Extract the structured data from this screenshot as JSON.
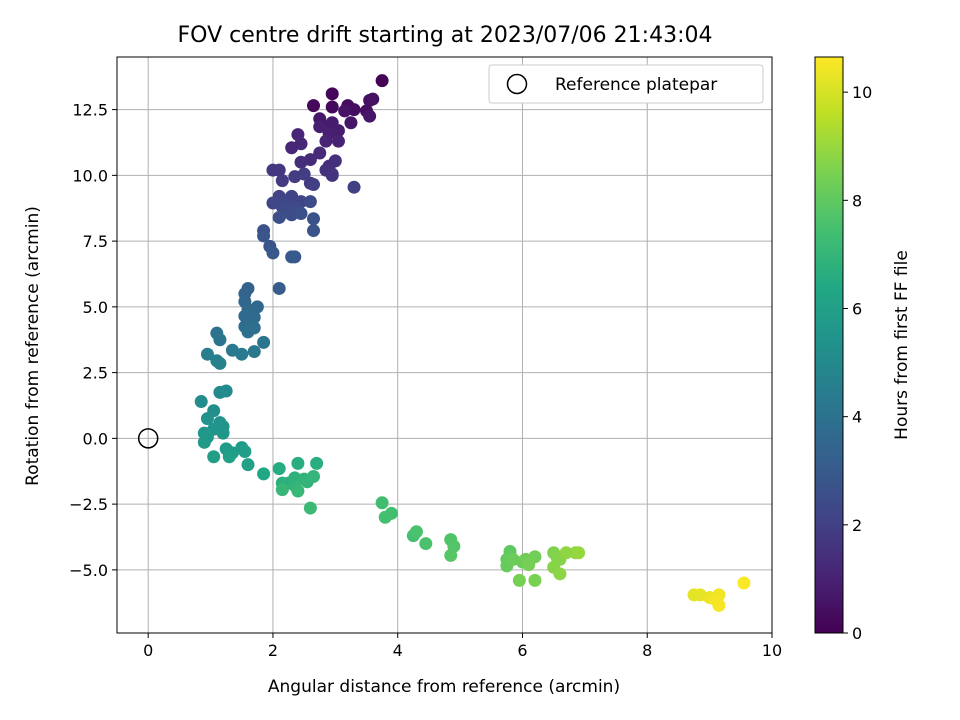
{
  "chart_data": {
    "type": "scatter",
    "title": "FOV centre drift starting at 2023/07/06 21:43:04",
    "xlabel": "Angular distance from reference (arcmin)",
    "ylabel": "Rotation from reference (arcmin)",
    "xlim": [
      -0.5,
      10
    ],
    "ylim": [
      -7.4,
      14.5
    ],
    "xticks": [
      0,
      2,
      4,
      6,
      8,
      10
    ],
    "xtick_labels": [
      "0",
      "2",
      "4",
      "6",
      "8",
      "10"
    ],
    "yticks": [
      -5.0,
      -2.5,
      0.0,
      2.5,
      5.0,
      7.5,
      10.0,
      12.5
    ],
    "ytick_labels": [
      "−5.0",
      "−2.5",
      "0.0",
      "2.5",
      "5.0",
      "7.5",
      "10.0",
      "12.5"
    ],
    "grid": true,
    "legend": {
      "position": "top-right",
      "entries": [
        "Reference platepar"
      ]
    },
    "reference_point": {
      "x": 0,
      "y": 0
    },
    "colorbar": {
      "label": "Hours from first FF file",
      "range": [
        0,
        10.65
      ],
      "ticks": [
        0,
        2,
        4,
        6,
        8,
        10
      ],
      "tick_labels": [
        "0",
        "2",
        "4",
        "6",
        "8",
        "10"
      ],
      "colormap": "viridis"
    },
    "series": [
      {
        "values": [
          [
            3.75,
            13.6,
            0.05
          ],
          [
            2.95,
            13.1,
            0.15
          ],
          [
            2.65,
            12.65,
            0.2
          ],
          [
            2.95,
            12.6,
            0.25
          ],
          [
            3.2,
            12.65,
            0.3
          ],
          [
            3.3,
            12.5,
            0.35
          ],
          [
            3.5,
            12.45,
            0.4
          ],
          [
            3.55,
            12.85,
            0.45
          ],
          [
            3.6,
            12.9,
            0.5
          ],
          [
            3.15,
            12.45,
            0.55
          ],
          [
            3.25,
            12.0,
            0.6
          ],
          [
            3.55,
            12.25,
            0.65
          ],
          [
            2.75,
            12.15,
            0.7
          ],
          [
            2.85,
            11.85,
            0.75
          ],
          [
            2.95,
            12.0,
            0.8
          ],
          [
            3.05,
            11.7,
            0.85
          ],
          [
            2.75,
            11.85,
            0.9
          ],
          [
            2.9,
            11.6,
            0.95
          ],
          [
            3.05,
            11.3,
            1.0
          ],
          [
            2.85,
            11.3,
            1.05
          ],
          [
            2.4,
            11.55,
            1.1
          ],
          [
            2.45,
            11.2,
            1.15
          ],
          [
            2.3,
            11.05,
            1.2
          ],
          [
            2.75,
            10.85,
            1.25
          ],
          [
            2.6,
            10.6,
            1.3
          ],
          [
            2.45,
            10.5,
            1.35
          ],
          [
            2.9,
            10.35,
            1.4
          ],
          [
            3.0,
            10.55,
            1.45
          ],
          [
            2.85,
            10.2,
            1.5
          ],
          [
            2.95,
            10.05,
            1.55
          ],
          [
            2.95,
            10.0,
            1.6
          ],
          [
            2.0,
            10.2,
            1.65
          ],
          [
            2.1,
            10.2,
            1.7
          ],
          [
            2.6,
            9.7,
            1.75
          ],
          [
            2.15,
            9.8,
            1.8
          ],
          [
            2.35,
            9.95,
            1.85
          ],
          [
            2.5,
            10.05,
            1.9
          ],
          [
            2.65,
            9.65,
            1.95
          ],
          [
            3.3,
            9.55,
            2.0
          ],
          [
            2.1,
            9.2,
            2.05
          ],
          [
            2.3,
            9.2,
            2.1
          ],
          [
            2.45,
            9.0,
            2.15
          ],
          [
            2.0,
            8.95,
            2.2
          ],
          [
            2.2,
            9.0,
            2.25
          ],
          [
            2.15,
            8.8,
            2.3
          ],
          [
            2.35,
            8.75,
            2.35
          ],
          [
            2.6,
            9.0,
            2.4
          ],
          [
            2.2,
            8.6,
            2.45
          ],
          [
            2.3,
            8.5,
            2.5
          ],
          [
            2.1,
            8.4,
            2.55
          ],
          [
            2.45,
            8.55,
            2.6
          ],
          [
            2.65,
            8.35,
            2.65
          ],
          [
            1.85,
            7.9,
            2.7
          ],
          [
            2.65,
            7.9,
            2.75
          ],
          [
            1.85,
            7.7,
            2.8
          ],
          [
            1.95,
            7.3,
            2.85
          ],
          [
            2.0,
            7.05,
            2.9
          ],
          [
            2.3,
            6.9,
            2.95
          ],
          [
            2.35,
            6.9,
            3.0
          ],
          [
            2.1,
            5.7,
            3.1
          ],
          [
            1.6,
            5.7,
            3.3
          ],
          [
            1.55,
            5.5,
            3.4
          ],
          [
            1.55,
            5.2,
            3.5
          ],
          [
            1.75,
            5.0,
            3.55
          ],
          [
            1.6,
            4.9,
            3.6
          ],
          [
            1.55,
            4.65,
            3.65
          ],
          [
            1.7,
            4.6,
            3.7
          ],
          [
            1.65,
            4.4,
            3.75
          ],
          [
            1.55,
            4.25,
            3.8
          ],
          [
            1.7,
            4.2,
            3.85
          ],
          [
            1.6,
            4.05,
            3.9
          ],
          [
            1.1,
            4.0,
            4.0
          ],
          [
            1.15,
            3.75,
            4.1
          ],
          [
            1.85,
            3.65,
            4.15
          ],
          [
            1.7,
            3.3,
            4.2
          ],
          [
            1.35,
            3.35,
            4.3
          ],
          [
            1.5,
            3.2,
            4.35
          ],
          [
            0.95,
            3.2,
            4.5
          ],
          [
            1.1,
            2.95,
            4.6
          ],
          [
            1.15,
            2.85,
            4.65
          ],
          [
            1.15,
            1.75,
            5.0
          ],
          [
            1.25,
            1.8,
            5.05
          ],
          [
            0.85,
            1.4,
            5.15
          ],
          [
            1.05,
            1.05,
            5.25
          ],
          [
            0.95,
            0.75,
            5.35
          ],
          [
            1.15,
            0.6,
            5.4
          ],
          [
            1.2,
            0.45,
            5.45
          ],
          [
            1.05,
            0.35,
            5.5
          ],
          [
            0.9,
            0.2,
            5.55
          ],
          [
            1.2,
            0.2,
            5.6
          ],
          [
            0.95,
            0.05,
            5.65
          ],
          [
            0.9,
            -0.15,
            5.7
          ],
          [
            1.25,
            -0.4,
            5.75
          ],
          [
            1.5,
            -0.35,
            5.8
          ],
          [
            1.35,
            -0.55,
            5.85
          ],
          [
            1.55,
            -0.5,
            5.9
          ],
          [
            1.05,
            -0.7,
            5.95
          ],
          [
            1.3,
            -0.7,
            6.0
          ],
          [
            1.6,
            -1.0,
            6.05
          ],
          [
            1.85,
            -1.35,
            6.35
          ],
          [
            2.1,
            -1.15,
            6.55
          ],
          [
            2.4,
            -0.95,
            6.6
          ],
          [
            2.7,
            -0.95,
            6.65
          ],
          [
            2.15,
            -1.7,
            6.7
          ],
          [
            2.25,
            -1.7,
            6.75
          ],
          [
            2.35,
            -1.5,
            6.8
          ],
          [
            2.5,
            -1.55,
            6.85
          ],
          [
            2.35,
            -1.8,
            6.9
          ],
          [
            2.55,
            -1.65,
            6.95
          ],
          [
            2.65,
            -1.45,
            7.0
          ],
          [
            2.15,
            -1.95,
            7.05
          ],
          [
            2.4,
            -2.0,
            7.1
          ],
          [
            2.6,
            -2.65,
            7.2
          ],
          [
            3.75,
            -2.45,
            7.35
          ],
          [
            3.9,
            -2.85,
            7.4
          ],
          [
            3.8,
            -3.0,
            7.45
          ],
          [
            4.25,
            -3.7,
            7.5
          ],
          [
            4.3,
            -3.55,
            7.55
          ],
          [
            4.45,
            -4.0,
            7.6
          ],
          [
            4.85,
            -3.85,
            7.7
          ],
          [
            4.9,
            -4.1,
            7.75
          ],
          [
            4.85,
            -4.45,
            7.8
          ],
          [
            5.8,
            -4.3,
            8.0
          ],
          [
            5.75,
            -4.6,
            8.1
          ],
          [
            5.75,
            -4.85,
            8.15
          ],
          [
            5.85,
            -4.6,
            8.2
          ],
          [
            6.0,
            -4.7,
            8.25
          ],
          [
            6.05,
            -4.6,
            8.3
          ],
          [
            6.2,
            -4.5,
            8.35
          ],
          [
            6.1,
            -4.8,
            8.4
          ],
          [
            5.95,
            -5.4,
            8.45
          ],
          [
            6.2,
            -5.4,
            8.5
          ],
          [
            6.5,
            -4.35,
            8.6
          ],
          [
            6.55,
            -4.5,
            8.65
          ],
          [
            6.6,
            -4.6,
            8.7
          ],
          [
            6.5,
            -4.9,
            8.75
          ],
          [
            6.6,
            -5.15,
            8.8
          ],
          [
            6.7,
            -4.35,
            8.85
          ],
          [
            6.85,
            -4.35,
            8.9
          ],
          [
            6.9,
            -4.35,
            8.95
          ],
          [
            8.75,
            -5.95,
            10.2
          ],
          [
            8.85,
            -5.95,
            10.25
          ],
          [
            9.0,
            -6.05,
            10.35
          ],
          [
            9.15,
            -5.95,
            10.45
          ],
          [
            9.1,
            -6.15,
            10.5
          ],
          [
            9.15,
            -6.35,
            10.55
          ],
          [
            9.55,
            -5.5,
            10.6
          ]
        ]
      }
    ]
  }
}
